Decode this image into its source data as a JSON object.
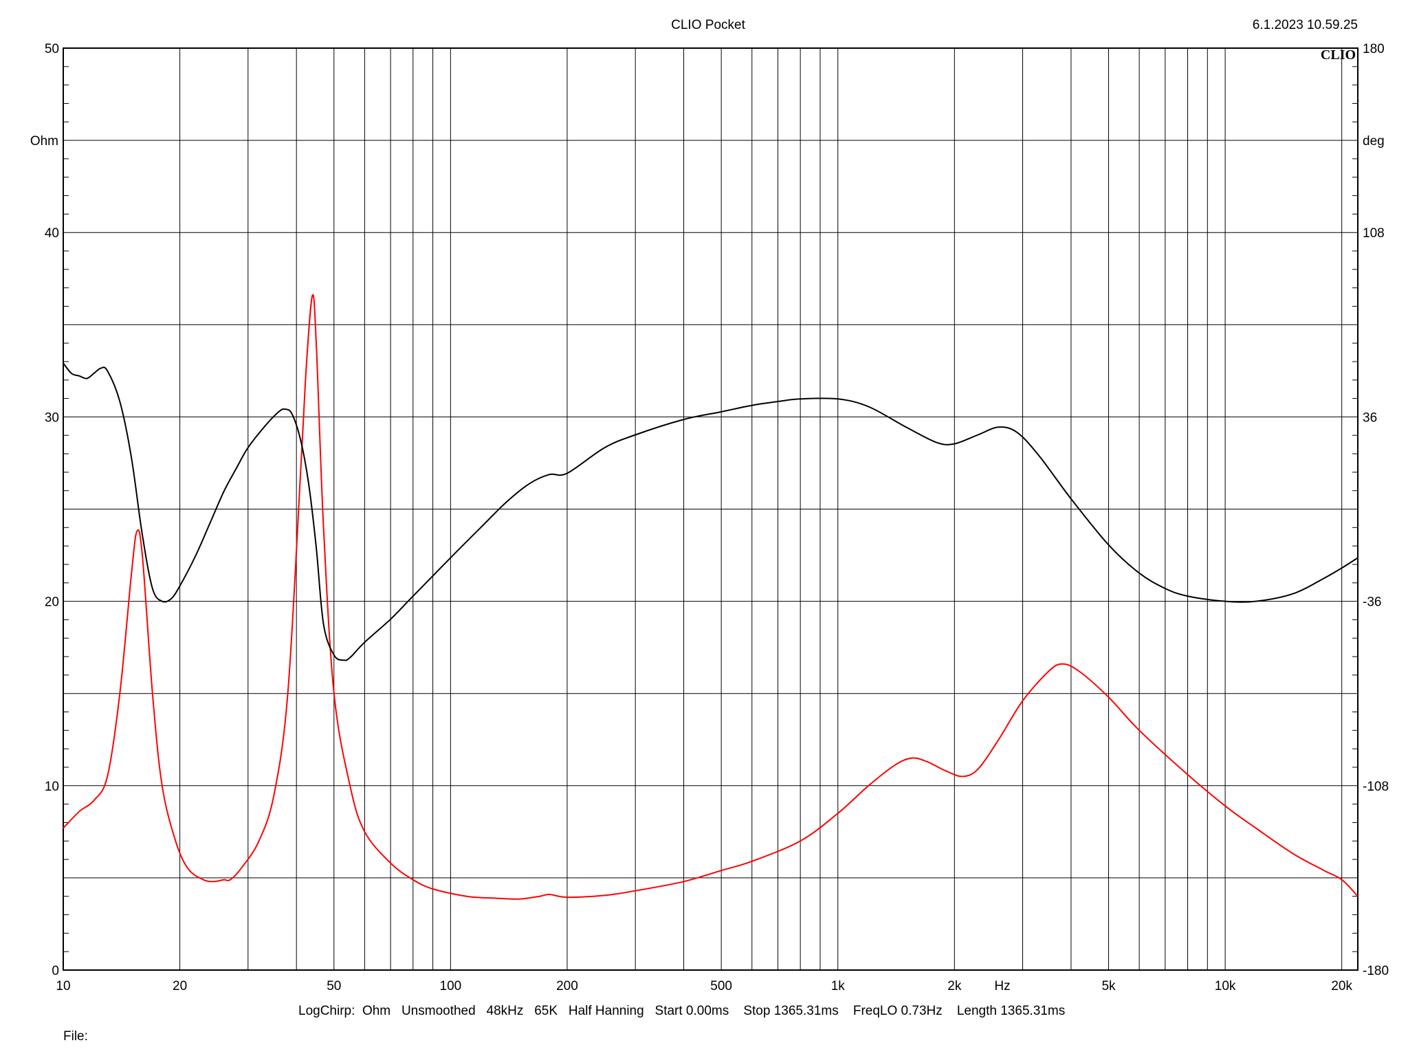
{
  "header": {
    "title": "CLIO Pocket",
    "timestamp": "6.1.2023 10.59.25",
    "logo": "CLIO"
  },
  "footer": {
    "settings": "LogChirp:  Ohm   Unsmoothed   48kHz   65K   Half Hanning   Start 0.00ms    Stop 1365.31ms    FreqLO 0.73Hz    Length 1365.31ms",
    "file_label": "File:"
  },
  "chart_data": {
    "type": "line",
    "x_scale": "log",
    "xlim": [
      10,
      22000
    ],
    "ylim": [
      0,
      50
    ],
    "y2lim": [
      -180,
      180
    ],
    "grid": true,
    "x_ticks": [
      {
        "value": 10,
        "label": "10"
      },
      {
        "value": 20,
        "label": "20"
      },
      {
        "value": 50,
        "label": "50"
      },
      {
        "value": 100,
        "label": "100"
      },
      {
        "value": 200,
        "label": "200"
      },
      {
        "value": 500,
        "label": "500"
      },
      {
        "value": 1000,
        "label": "1k"
      },
      {
        "value": 2000,
        "label": "2k"
      },
      {
        "value": 5000,
        "label": "5k"
      },
      {
        "value": 10000,
        "label": "10k"
      },
      {
        "value": 20000,
        "label": "20k"
      }
    ],
    "x_unit_label": "Hz",
    "y_ticks": [
      {
        "value": 0,
        "label": "0"
      },
      {
        "value": 10,
        "label": "10"
      },
      {
        "value": 20,
        "label": "20"
      },
      {
        "value": 30,
        "label": "30"
      },
      {
        "value": 40,
        "label": "40"
      },
      {
        "value": 50,
        "label": "50"
      }
    ],
    "y_unit_label": "Ohm",
    "y2_ticks": [
      {
        "value": -180,
        "label": "-180"
      },
      {
        "value": -108,
        "label": "-108"
      },
      {
        "value": -36,
        "label": "-36"
      },
      {
        "value": 36,
        "label": "36"
      },
      {
        "value": 108,
        "label": "108"
      },
      {
        "value": 180,
        "label": "180"
      }
    ],
    "y2_unit_label": "deg",
    "series": [
      {
        "axis": "left",
        "color": "#ff0000",
        "points": [
          [
            10,
            7.7
          ],
          [
            11,
            8.6
          ],
          [
            12,
            9.2
          ],
          [
            13,
            10.5
          ],
          [
            14,
            15.0
          ],
          [
            15,
            21.5
          ],
          [
            15.5,
            23.8
          ],
          [
            16,
            22.5
          ],
          [
            17,
            15.0
          ],
          [
            18,
            10.0
          ],
          [
            19.5,
            7.0
          ],
          [
            21,
            5.5
          ],
          [
            23,
            4.9
          ],
          [
            24.5,
            4.8
          ],
          [
            26,
            4.9
          ],
          [
            27,
            4.9
          ],
          [
            29,
            5.6
          ],
          [
            32,
            7.0
          ],
          [
            35,
            9.5
          ],
          [
            38,
            15.0
          ],
          [
            41,
            27.0
          ],
          [
            42.5,
            33.0
          ],
          [
            44,
            36.6
          ],
          [
            45,
            34.0
          ],
          [
            47,
            24.0
          ],
          [
            50,
            15.0
          ],
          [
            55,
            10.0
          ],
          [
            60,
            7.5
          ],
          [
            70,
            5.8
          ],
          [
            80,
            4.9
          ],
          [
            90,
            4.4
          ],
          [
            110,
            4.0
          ],
          [
            130,
            3.9
          ],
          [
            150,
            3.85
          ],
          [
            170,
            4.0
          ],
          [
            180,
            4.1
          ],
          [
            200,
            3.95
          ],
          [
            250,
            4.05
          ],
          [
            300,
            4.3
          ],
          [
            400,
            4.8
          ],
          [
            500,
            5.4
          ],
          [
            600,
            5.9
          ],
          [
            800,
            7.0
          ],
          [
            1000,
            8.5
          ],
          [
            1200,
            10.0
          ],
          [
            1400,
            11.1
          ],
          [
            1550,
            11.5
          ],
          [
            1700,
            11.3
          ],
          [
            1900,
            10.8
          ],
          [
            2100,
            10.5
          ],
          [
            2300,
            10.9
          ],
          [
            2600,
            12.5
          ],
          [
            3000,
            14.6
          ],
          [
            3500,
            16.2
          ],
          [
            3800,
            16.6
          ],
          [
            4200,
            16.2
          ],
          [
            5000,
            14.8
          ],
          [
            6000,
            13.0
          ],
          [
            8000,
            10.6
          ],
          [
            10000,
            8.9
          ],
          [
            12000,
            7.7
          ],
          [
            15000,
            6.3
          ],
          [
            18000,
            5.4
          ],
          [
            20000,
            4.9
          ],
          [
            22000,
            4.0
          ]
        ]
      },
      {
        "axis": "right",
        "color": "#000000",
        "points": [
          [
            10,
            57
          ],
          [
            10.5,
            53
          ],
          [
            11,
            52
          ],
          [
            11.5,
            51
          ],
          [
            12,
            53
          ],
          [
            12.5,
            55
          ],
          [
            13,
            54
          ],
          [
            14,
            42
          ],
          [
            15,
            20
          ],
          [
            16,
            -10
          ],
          [
            17,
            -31
          ],
          [
            18,
            -36
          ],
          [
            19,
            -35
          ],
          [
            20,
            -30
          ],
          [
            22,
            -18
          ],
          [
            24,
            -5
          ],
          [
            26,
            7
          ],
          [
            28,
            16
          ],
          [
            30,
            24
          ],
          [
            33,
            32
          ],
          [
            36,
            38
          ],
          [
            37.5,
            39
          ],
          [
            39,
            37
          ],
          [
            41,
            27
          ],
          [
            43,
            10
          ],
          [
            45,
            -15
          ],
          [
            47,
            -45
          ],
          [
            50,
            -57
          ],
          [
            53,
            -59
          ],
          [
            55,
            -58
          ],
          [
            60,
            -52
          ],
          [
            70,
            -43
          ],
          [
            80,
            -34
          ],
          [
            100,
            -19
          ],
          [
            120,
            -7
          ],
          [
            140,
            3
          ],
          [
            160,
            10
          ],
          [
            180,
            13.5
          ],
          [
            200,
            14
          ],
          [
            250,
            24
          ],
          [
            300,
            29
          ],
          [
            400,
            35
          ],
          [
            500,
            38
          ],
          [
            600,
            40.5
          ],
          [
            700,
            42
          ],
          [
            800,
            43
          ],
          [
            1000,
            43
          ],
          [
            1200,
            40
          ],
          [
            1500,
            32
          ],
          [
            1800,
            26
          ],
          [
            2000,
            25.5
          ],
          [
            2300,
            29
          ],
          [
            2600,
            32
          ],
          [
            2900,
            30
          ],
          [
            3300,
            21
          ],
          [
            4000,
            4
          ],
          [
            5000,
            -14
          ],
          [
            6000,
            -25
          ],
          [
            7000,
            -31
          ],
          [
            8000,
            -34
          ],
          [
            10000,
            -36
          ],
          [
            12000,
            -36
          ],
          [
            15000,
            -33
          ],
          [
            18000,
            -27
          ],
          [
            20000,
            -23
          ],
          [
            22000,
            -19
          ]
        ]
      }
    ]
  }
}
